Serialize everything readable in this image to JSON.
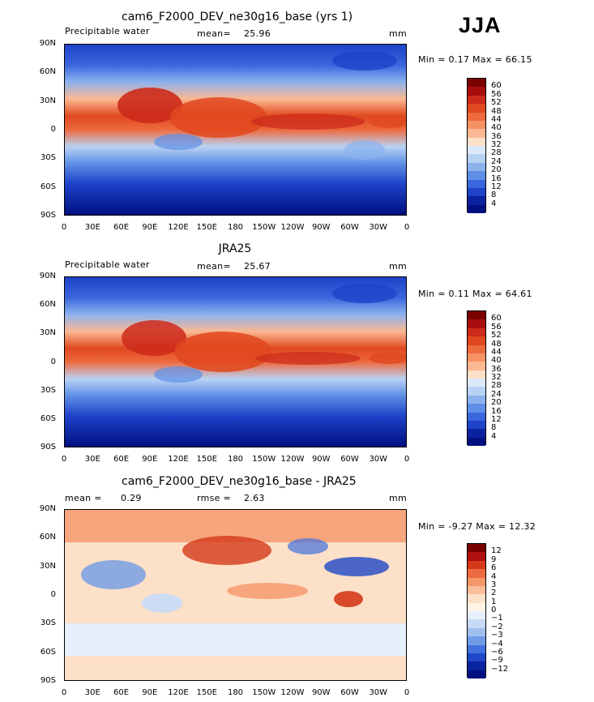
{
  "season": "JJA",
  "panels": [
    {
      "title": "cam6_F2000_DEV_ne30g16_base (yrs 1)",
      "left_label": "Precipitable water",
      "stat1_label": "mean=",
      "stat1_value": "25.96",
      "stat2_label": "",
      "stat2_value": "",
      "units": "mm",
      "minmax": "Min =    0.17 Max =   66.15"
    },
    {
      "title": "JRA25",
      "left_label": "Precipitable water",
      "stat1_label": "mean=",
      "stat1_value": "25.67",
      "stat2_label": "",
      "stat2_value": "",
      "units": "mm",
      "minmax": "Min =    0.11 Max =   64.61"
    },
    {
      "title": "cam6_F2000_DEV_ne30g16_base - JRA25",
      "left_label": "mean =",
      "left_value": "0.29",
      "stat1_label": "rmse =",
      "stat1_value": "2.63",
      "stat2_label": "",
      "stat2_value": "",
      "units": "mm",
      "minmax": "Min =   -9.27 Max =   12.32"
    }
  ],
  "chart_data": [
    {
      "type": "heatmap",
      "title": "cam6_F2000_DEV_ne30g16_base (yrs 1)",
      "variable": "Precipitable water",
      "units": "mm",
      "mean": 25.96,
      "min": 0.17,
      "max": 66.15,
      "x_ticks": [
        "0",
        "30E",
        "60E",
        "90E",
        "120E",
        "150E",
        "180",
        "150W",
        "120W",
        "90W",
        "60W",
        "30W",
        "0"
      ],
      "y_ticks": [
        "90N",
        "60N",
        "30N",
        "0",
        "30S",
        "60S",
        "90S"
      ],
      "colorbar_levels": [
        "60",
        "56",
        "52",
        "48",
        "44",
        "40",
        "36",
        "32",
        "28",
        "24",
        "20",
        "16",
        "12",
        "8",
        "4"
      ]
    },
    {
      "type": "heatmap",
      "title": "JRA25",
      "variable": "Precipitable water",
      "units": "mm",
      "mean": 25.67,
      "min": 0.11,
      "max": 64.61,
      "x_ticks": [
        "0",
        "30E",
        "60E",
        "90E",
        "120E",
        "150E",
        "180",
        "150W",
        "120W",
        "90W",
        "60W",
        "30W",
        "0"
      ],
      "y_ticks": [
        "90N",
        "60N",
        "30N",
        "0",
        "30S",
        "60S",
        "90S"
      ],
      "colorbar_levels": [
        "60",
        "56",
        "52",
        "48",
        "44",
        "40",
        "36",
        "32",
        "28",
        "24",
        "20",
        "16",
        "12",
        "8",
        "4"
      ]
    },
    {
      "type": "heatmap",
      "title": "cam6_F2000_DEV_ne30g16_base - JRA25",
      "units": "mm",
      "mean": 0.29,
      "rmse": 2.63,
      "min": -9.27,
      "max": 12.32,
      "x_ticks": [
        "0",
        "30E",
        "60E",
        "90E",
        "120E",
        "150E",
        "180",
        "150W",
        "120W",
        "90W",
        "60W",
        "30W",
        "0"
      ],
      "y_ticks": [
        "90N",
        "60N",
        "30N",
        "0",
        "30S",
        "60S",
        "90S"
      ],
      "colorbar_levels": [
        "12",
        "9",
        "6",
        "4",
        "3",
        "2",
        "1",
        "0",
        "−1",
        "−2",
        "−3",
        "−4",
        "−6",
        "−9",
        "−12"
      ]
    }
  ],
  "colors": {
    "abs_scale": [
      "#7a0000",
      "#a80d0d",
      "#cc2a1b",
      "#e0481f",
      "#ee6a3f",
      "#f59163",
      "#fbb892",
      "#fde0c8",
      "#dce9fa",
      "#b8d2f4",
      "#8cb2ee",
      "#5f8ee6",
      "#3a66dd",
      "#1e42c8",
      "#0a22a0",
      "#001080"
    ],
    "diff_scale": [
      "#7a0000",
      "#b01010",
      "#d43a1a",
      "#ee6a3f",
      "#f5966a",
      "#fbbd9a",
      "#fde0c8",
      "#fff3e6",
      "#e6f0fc",
      "#c7dbf6",
      "#9fc0ef",
      "#6f9be6",
      "#4270dc",
      "#1f47c8",
      "#0a24a0",
      "#001080"
    ]
  }
}
